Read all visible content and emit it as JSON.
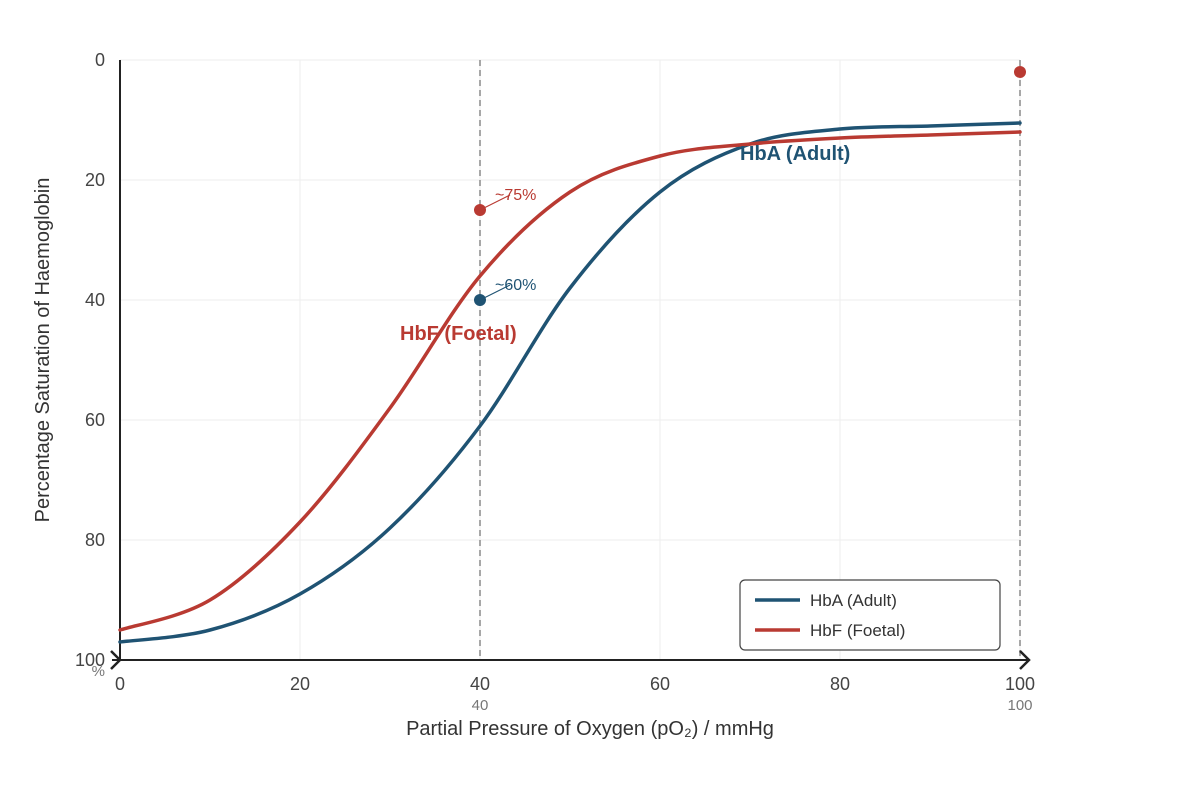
{
  "chart_data": {
    "type": "line",
    "xlabel": "Partial Pressure of Oxygen (pO₂) / mmHg",
    "ylabel": "Percentage Saturation of Haemoglobin",
    "xlim": [
      0,
      100
    ],
    "ylim": [
      0,
      100
    ],
    "y_axis_inverted": true,
    "x_ticks": [
      "0",
      "20",
      "40",
      "60",
      "80",
      "100"
    ],
    "x_tick_values": [
      0,
      20,
      40,
      60,
      80,
      100
    ],
    "y_ticks": [
      "0",
      "20",
      "40",
      "60",
      "80",
      "100"
    ],
    "y_tick_values": [
      0,
      20,
      40,
      60,
      80,
      100
    ],
    "y_unit_label": "%",
    "grid": true,
    "reference_lines": [
      {
        "x": 40,
        "label": "40"
      },
      {
        "x": 100,
        "label": "100"
      }
    ],
    "series": [
      {
        "name": "HbA (Adult)",
        "color": "#1f5373",
        "x": [
          0,
          10,
          20,
          30,
          40,
          50,
          60,
          70,
          80,
          90,
          100
        ],
        "y": [
          97,
          95,
          89,
          78,
          61,
          38,
          22,
          14,
          11.5,
          11,
          10.5
        ]
      },
      {
        "name": "HbF (Foetal)",
        "color": "#b93a32",
        "x": [
          0,
          10,
          20,
          30,
          40,
          50,
          60,
          70,
          80,
          90,
          100
        ],
        "y": [
          95,
          90,
          77,
          58,
          36,
          22,
          16,
          14,
          13,
          12.5,
          12
        ]
      }
    ],
    "curve_labels": [
      {
        "text": "HbA (Adult)",
        "color": "#1f5373"
      },
      {
        "text": "HbF (Foetal)",
        "color": "#b93a32"
      }
    ],
    "annotations": [
      {
        "text": "~75%",
        "x": 40,
        "y": 25,
        "color": "#b93a32"
      },
      {
        "text": "~60%",
        "x": 40,
        "y": 40,
        "color": "#1f5373"
      }
    ],
    "extra_points": [
      {
        "x": 100,
        "y": 2,
        "color": "#b93a32"
      }
    ],
    "legend": {
      "position": "bottom-right",
      "entries": [
        "HbA (Adult)",
        "HbF (Foetal)"
      ]
    }
  }
}
